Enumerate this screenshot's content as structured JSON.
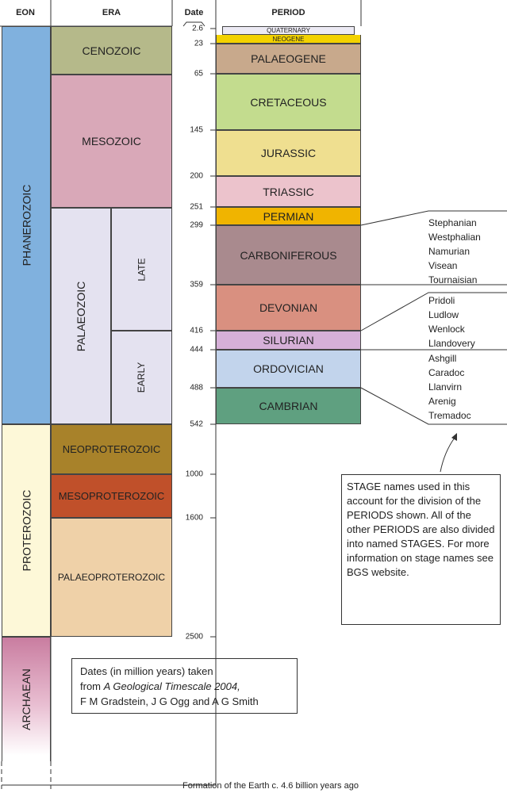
{
  "header": {
    "eon": "EON",
    "era": "ERA",
    "date": "Date",
    "period": "PERIOD"
  },
  "eons": [
    {
      "label": "PHANEROZOIC"
    },
    {
      "label": "PROTEROZOIC"
    },
    {
      "label": "ARCHAEAN"
    }
  ],
  "eras": [
    {
      "label": "CENOZOIC"
    },
    {
      "label": "MESOZOIC"
    },
    {
      "label": "PALAEOZOIC"
    },
    {
      "label": "NEOPROTEROZOIC"
    },
    {
      "label": "MESOPROTEROZOIC"
    },
    {
      "label": "PALAEOPROTEROZOIC"
    }
  ],
  "subdivisions": [
    {
      "label": "LATE"
    },
    {
      "label": "EARLY"
    }
  ],
  "dates": [
    "2.6",
    "23",
    "65",
    "145",
    "200",
    "251",
    "299",
    "359",
    "416",
    "444",
    "488",
    "542",
    "1000",
    "1600",
    "2500"
  ],
  "periods": [
    {
      "label": "QUATERNARY"
    },
    {
      "label": "NEOGENE"
    },
    {
      "label": "PALAEOGENE"
    },
    {
      "label": "CRETACEOUS"
    },
    {
      "label": "JURASSIC"
    },
    {
      "label": "TRIASSIC"
    },
    {
      "label": "PERMIAN"
    },
    {
      "label": "CARBONIFEROUS"
    },
    {
      "label": "DEVONIAN"
    },
    {
      "label": "SILURIAN"
    },
    {
      "label": "ORDOVICIAN"
    },
    {
      "label": "CAMBRIAN"
    }
  ],
  "stages": [
    [
      "Stephanian",
      "Westphalian",
      "Namurian",
      "Visean",
      "Tournaisian"
    ],
    [
      "Pridoli",
      "Ludlow",
      "Wenlock",
      "Llandovery"
    ],
    [
      "Ashgill",
      "Caradoc",
      "Llanvirn",
      "Arenig",
      "Tremadoc"
    ]
  ],
  "note": "STAGE names used in this account for the division of the PERIODS shown. All of the other PERIODS are also divided into named STAGES. For more information on stage names see BGS website.",
  "source": {
    "line1": "Dates (in million years) taken",
    "line2_prefix": "from ",
    "line2_italic": "A Geological Timescale 2004,",
    "line3": "F M Gradstein, J G Ogg and A G Smith"
  },
  "footer": "Formation of the Earth c. 4.6 billion years ago"
}
